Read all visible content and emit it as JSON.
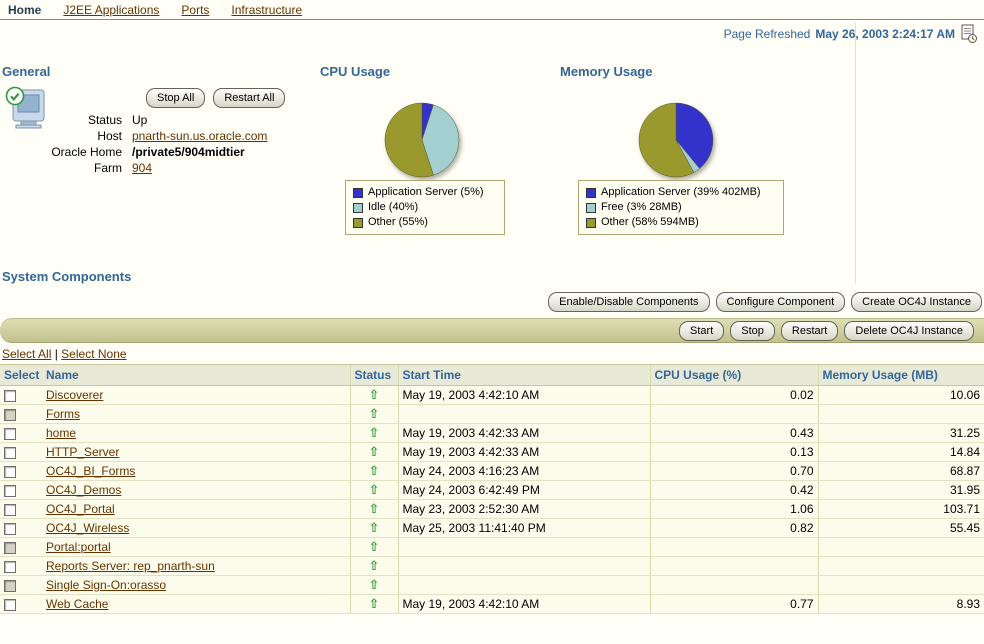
{
  "colors": {
    "header_teal": "#336699",
    "link_brown": "#663300",
    "toolbar_olive": "#cccc99",
    "status_green": "#2f9932"
  },
  "icons": {
    "status_up_glyph": "⇧"
  },
  "nav": {
    "items": [
      {
        "label": "Home",
        "active": true
      },
      {
        "label": "J2EE Applications",
        "active": false
      },
      {
        "label": "Ports",
        "active": false
      },
      {
        "label": "Infrastructure",
        "active": false
      }
    ]
  },
  "refresh": {
    "label": "Page Refreshed",
    "timestamp": "May 26, 2003 2:24:17 AM"
  },
  "general": {
    "title": "General",
    "buttons": {
      "stop_all": "Stop All",
      "restart_all": "Restart All"
    },
    "fields": [
      {
        "label": "Status",
        "value": "Up"
      },
      {
        "label": "Host",
        "value": "pnarth-sun.us.oracle.com"
      },
      {
        "label": "Oracle Home",
        "value": "/private5/904midtier"
      },
      {
        "label": "Farm",
        "value": "904"
      }
    ]
  },
  "chart_data": [
    {
      "type": "pie",
      "title": "CPU Usage",
      "labels": [
        "Application Server (5%)",
        "Idle (40%)",
        "Other (55%)"
      ],
      "values": [
        5,
        40,
        55
      ],
      "colors": [
        "#3333cc",
        "#a3cfd1",
        "#99992e"
      ],
      "legend_position": "below"
    },
    {
      "type": "pie",
      "title": "Memory Usage",
      "labels": [
        "Application Server (39% 402MB)",
        "Free (3% 28MB)",
        "Other (58% 594MB)"
      ],
      "values": [
        39,
        3,
        58
      ],
      "colors": [
        "#3333cc",
        "#a3cfd1",
        "#99992e"
      ],
      "legend_position": "below"
    }
  ],
  "system_components": {
    "title": "System Components",
    "top_buttons": [
      "Enable/Disable Components",
      "Configure Component",
      "Create OC4J Instance"
    ],
    "toolbar_buttons": [
      "Start",
      "Stop",
      "Restart",
      "Delete OC4J Instance"
    ],
    "select_all_label": "Select All",
    "select_none_label": "Select None",
    "links_separator": "|",
    "columns": [
      "Select",
      "Name",
      "Status",
      "Start Time",
      "CPU Usage (%)",
      "Memory Usage (MB)"
    ],
    "rows": [
      {
        "name": "Discoverer",
        "status": "up",
        "start_time": "May 19, 2003 4:42:10 AM",
        "cpu": "0.02",
        "memory": "10.06",
        "checkbox_disabled": false
      },
      {
        "name": "Forms",
        "status": "up",
        "start_time": "",
        "cpu": "",
        "memory": "",
        "checkbox_disabled": true
      },
      {
        "name": "home",
        "status": "up",
        "start_time": "May 19, 2003 4:42:33 AM",
        "cpu": "0.43",
        "memory": "31.25",
        "checkbox_disabled": false
      },
      {
        "name": "HTTP_Server",
        "status": "up",
        "start_time": "May 19, 2003 4:42:33 AM",
        "cpu": "0.13",
        "memory": "14.84",
        "checkbox_disabled": false
      },
      {
        "name": "OC4J_BI_Forms",
        "status": "up",
        "start_time": "May 24, 2003 4:16:23 AM",
        "cpu": "0.70",
        "memory": "68.87",
        "checkbox_disabled": false
      },
      {
        "name": "OC4J_Demos",
        "status": "up",
        "start_time": "May 24, 2003 6:42:49 PM",
        "cpu": "0.42",
        "memory": "31.95",
        "checkbox_disabled": false
      },
      {
        "name": "OC4J_Portal",
        "status": "up",
        "start_time": "May 23, 2003 2:52:30 AM",
        "cpu": "1.06",
        "memory": "103.71",
        "checkbox_disabled": false
      },
      {
        "name": "OC4J_Wireless",
        "status": "up",
        "start_time": "May 25, 2003 11:41:40 PM",
        "cpu": "0.82",
        "memory": "55.45",
        "checkbox_disabled": false
      },
      {
        "name": "Portal:portal",
        "status": "up",
        "start_time": "",
        "cpu": "",
        "memory": "",
        "checkbox_disabled": true
      },
      {
        "name": "Reports Server: rep_pnarth-sun",
        "status": "up",
        "start_time": "",
        "cpu": "",
        "memory": "",
        "checkbox_disabled": false
      },
      {
        "name": "Single Sign-On:orasso",
        "status": "up",
        "start_time": "",
        "cpu": "",
        "memory": "",
        "checkbox_disabled": true
      },
      {
        "name": "Web Cache",
        "status": "up",
        "start_time": "May 19, 2003 4:42:10 AM",
        "cpu": "0.77",
        "memory": "8.93",
        "checkbox_disabled": false
      }
    ]
  }
}
